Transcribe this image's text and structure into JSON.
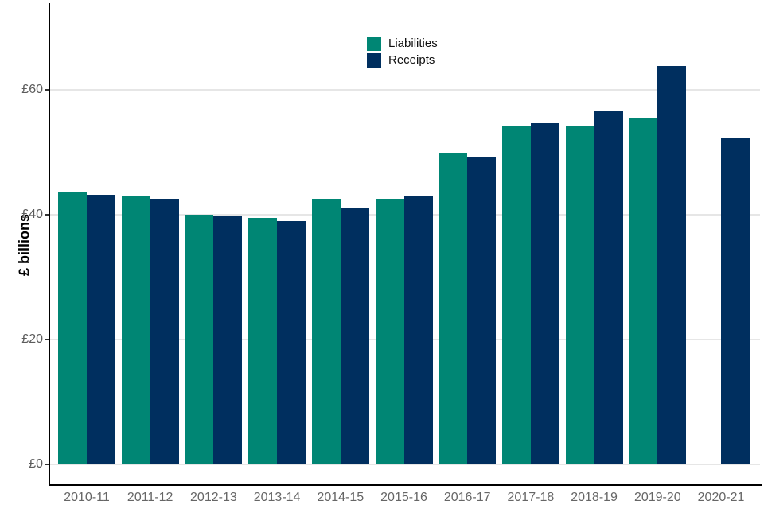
{
  "chart_data": {
    "type": "bar",
    "title": "",
    "xlabel": "",
    "ylabel": "£ billions",
    "categories": [
      "2010-11",
      "2011-12",
      "2012-13",
      "2013-14",
      "2014-15",
      "2015-16",
      "2016-17",
      "2017-18",
      "2018-19",
      "2019-20",
      "2020-21"
    ],
    "series": [
      {
        "name": "Liabilities",
        "color": "#008674",
        "values": [
          43.6,
          43.0,
          40.0,
          39.5,
          42.5,
          42.5,
          49.8,
          54.1,
          54.2,
          55.5,
          null
        ]
      },
      {
        "name": "Receipts",
        "color": "#002F5F",
        "values": [
          43.1,
          42.5,
          39.8,
          39.0,
          41.1,
          43.0,
          49.2,
          54.6,
          56.5,
          63.7,
          52.2
        ]
      }
    ],
    "y_ticks": [
      {
        "value": 0,
        "label": "£0"
      },
      {
        "value": 20,
        "label": "£20"
      },
      {
        "value": 40,
        "label": "£40"
      },
      {
        "value": 60,
        "label": "£60"
      }
    ],
    "ylim": [
      0,
      73
    ],
    "grid": true,
    "legend_position": "inside-top-center"
  }
}
